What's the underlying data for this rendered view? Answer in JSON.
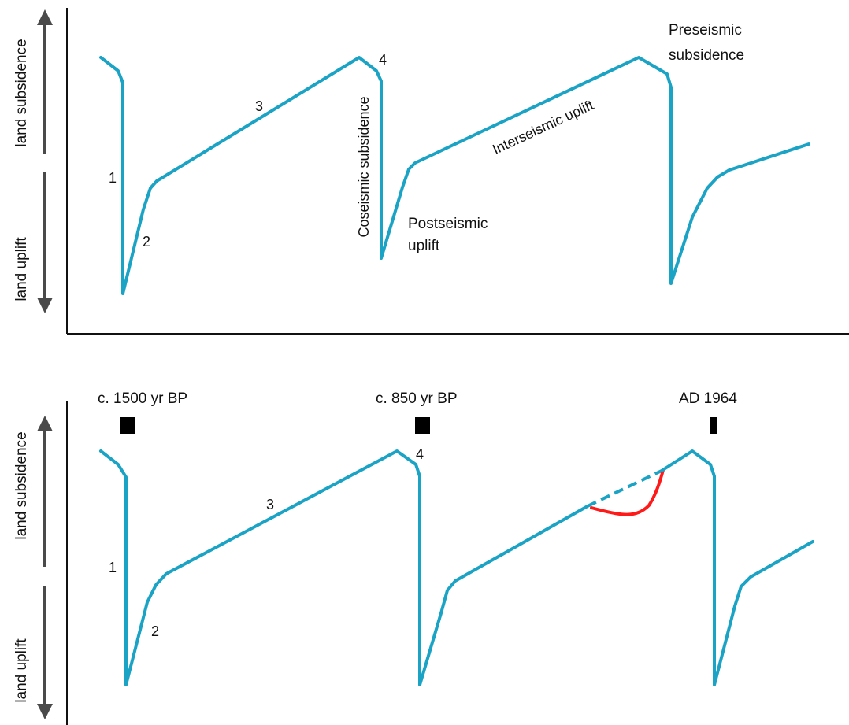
{
  "colors": {
    "curve": "#1aa3c4",
    "highlight": "#ff1a1a",
    "axis": "#111111",
    "arrow": "#4a4a4a",
    "marker": "#000000"
  },
  "top_panel": {
    "y_axis_top_label": "land subsidence",
    "y_axis_bottom_label": "land uplift",
    "numbers": {
      "n1": "1",
      "n2": "2",
      "n3": "3",
      "n4": "4"
    },
    "labels": {
      "coseismic": "Coseismic subsidence",
      "postseismic_line1": "Postseismic",
      "postseismic_line2": "uplift",
      "interseismic": "Interseismic uplift",
      "preseismic_line1": "Preseismic",
      "preseismic_line2": "subsidence"
    }
  },
  "bottom_panel": {
    "y_axis_top_label": "land subsidence",
    "y_axis_bottom_label": "land uplift",
    "numbers": {
      "n1": "1",
      "n2": "2",
      "n3": "3",
      "n4": "4"
    },
    "events": [
      {
        "label": "c. 1500 yr BP",
        "marker": "wide"
      },
      {
        "label": "c. 850 yr BP",
        "marker": "wide"
      },
      {
        "label": "AD 1964",
        "marker": "narrow"
      }
    ]
  }
}
